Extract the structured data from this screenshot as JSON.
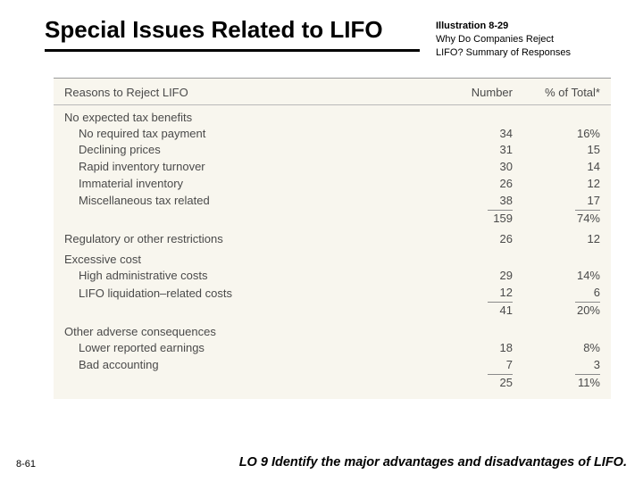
{
  "title": "Special Issues Related to LIFO",
  "illustration": {
    "label": "Illustration 8-29",
    "caption": "Why Do Companies Reject LIFO? Summary of Responses"
  },
  "table": {
    "headers": {
      "reason": "Reasons to Reject LIFO",
      "number": "Number",
      "pct": "% of Total*"
    },
    "sections": [
      {
        "heading": "No expected tax benefits",
        "rows": [
          {
            "label": "No required tax payment",
            "num": "34",
            "pct": "16%"
          },
          {
            "label": "Declining prices",
            "num": "31",
            "pct": "15"
          },
          {
            "label": "Rapid inventory turnover",
            "num": "30",
            "pct": "14"
          },
          {
            "label": "Immaterial inventory",
            "num": "26",
            "pct": "12"
          },
          {
            "label": "Miscellaneous tax related",
            "num": "38",
            "pct": "17"
          }
        ],
        "subtotal": {
          "num": "159",
          "pct": "74%"
        }
      },
      {
        "heading": "Regulatory or other restrictions",
        "rows": [],
        "subtotal": {
          "num": "26",
          "pct": "12"
        }
      },
      {
        "heading": "Excessive cost",
        "rows": [
          {
            "label": "High administrative costs",
            "num": "29",
            "pct": "14%"
          },
          {
            "label": "LIFO liquidation–related costs",
            "num": "12",
            "pct": "6"
          }
        ],
        "subtotal": {
          "num": "41",
          "pct": "20%"
        }
      },
      {
        "heading": "Other adverse consequences",
        "rows": [
          {
            "label": "Lower reported earnings",
            "num": "18",
            "pct": "8%"
          },
          {
            "label": "Bad accounting",
            "num": "7",
            "pct": "3"
          }
        ],
        "subtotal": {
          "num": "25",
          "pct": "11%"
        }
      }
    ]
  },
  "footer": {
    "page": "8-61",
    "lo": "LO 9  Identify the major advantages and disadvantages of LIFO."
  }
}
